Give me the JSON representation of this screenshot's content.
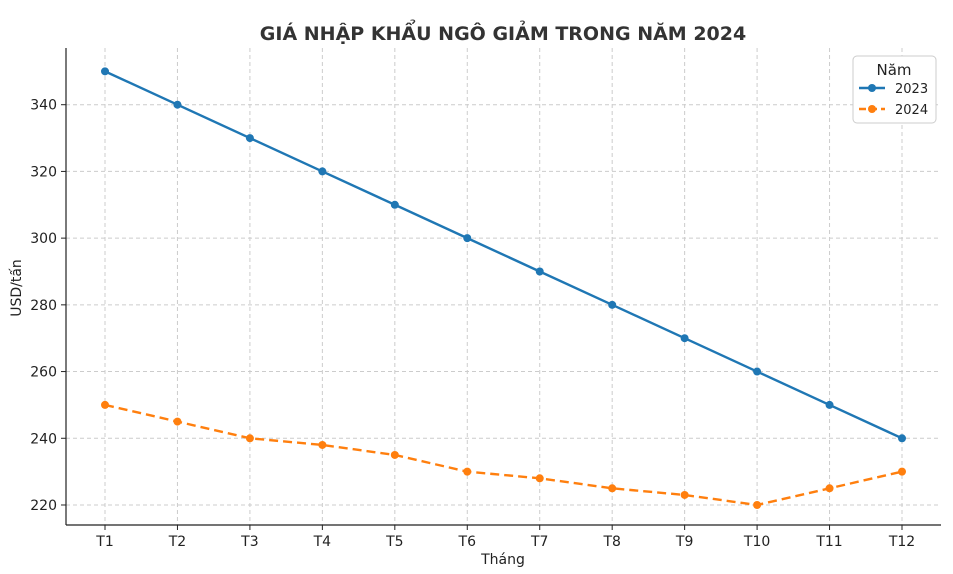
{
  "chart_data": {
    "type": "line",
    "title": "GIÁ NHẬP KHẨU NGÔ GIẢM TRONG NĂM 2024",
    "xlabel": "Tháng",
    "ylabel": "USD/tấn",
    "categories": [
      "T1",
      "T2",
      "T3",
      "T4",
      "T5",
      "T6",
      "T7",
      "T8",
      "T9",
      "T10",
      "T11",
      "T12"
    ],
    "ylim": [
      214,
      357
    ],
    "yticks": [
      220,
      240,
      260,
      280,
      300,
      320,
      340
    ],
    "grid": true,
    "legend": {
      "title": "Năm",
      "placement": "top-right"
    },
    "series": [
      {
        "name": "2023",
        "color": "#1f77b4",
        "style": "solid",
        "values": [
          350,
          340,
          330,
          320,
          310,
          300,
          290,
          280,
          270,
          260,
          250,
          240
        ]
      },
      {
        "name": "2024",
        "color": "#ff7f0e",
        "style": "dashed",
        "values": [
          250,
          245,
          240,
          238,
          235,
          230,
          228,
          225,
          223,
          220,
          225,
          230
        ]
      }
    ]
  }
}
